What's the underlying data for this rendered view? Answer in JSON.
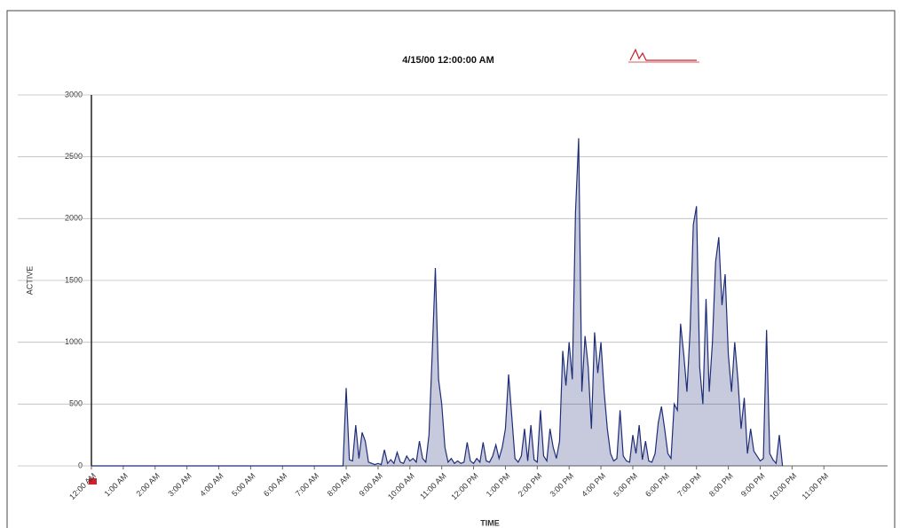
{
  "chart_data": {
    "type": "line",
    "title": "4/15/00 12:00:00 AM",
    "xlabel": "TIME",
    "ylabel": "ACTIVE",
    "color": "#1f2d78",
    "ylim": [
      0,
      3000
    ],
    "yticks": [
      0,
      500,
      1000,
      1500,
      2000,
      2500,
      3000
    ],
    "grid": true,
    "xlim": [
      0,
      25
    ],
    "xticks": [
      {
        "value": 0,
        "label": "12:00 AM"
      },
      {
        "value": 1,
        "label": "1:00 AM"
      },
      {
        "value": 2,
        "label": "2:00 AM"
      },
      {
        "value": 3,
        "label": "3:00 AM"
      },
      {
        "value": 4,
        "label": "4:00 AM"
      },
      {
        "value": 5,
        "label": "5:00 AM"
      },
      {
        "value": 6,
        "label": "6:00 AM"
      },
      {
        "value": 7,
        "label": "7:00 AM"
      },
      {
        "value": 8,
        "label": "8:00 AM"
      },
      {
        "value": 9,
        "label": "9:00 AM"
      },
      {
        "value": 10,
        "label": "10:00 AM"
      },
      {
        "value": 11,
        "label": "11:00 AM"
      },
      {
        "value": 12,
        "label": "12:00 PM"
      },
      {
        "value": 13,
        "label": "1:00 PM"
      },
      {
        "value": 14,
        "label": "2:00 PM"
      },
      {
        "value": 15,
        "label": "3:00 PM"
      },
      {
        "value": 16,
        "label": "4:00 PM"
      },
      {
        "value": 17,
        "label": "5:00 PM"
      },
      {
        "value": 18,
        "label": "6:00 PM"
      },
      {
        "value": 19,
        "label": "7:00 PM"
      },
      {
        "value": 20,
        "label": "8:00 PM"
      },
      {
        "value": 21,
        "label": "9:00 PM"
      },
      {
        "value": 22,
        "label": "10:00 PM"
      },
      {
        "value": 23,
        "label": "11:00 PM"
      }
    ],
    "x": [
      0,
      7.9,
      8.0,
      8.1,
      8.2,
      8.3,
      8.4,
      8.5,
      8.6,
      8.7,
      8.8,
      8.9,
      9.0,
      9.1,
      9.2,
      9.3,
      9.4,
      9.5,
      9.6,
      9.7,
      9.8,
      9.9,
      10.0,
      10.1,
      10.2,
      10.3,
      10.4,
      10.5,
      10.6,
      10.7,
      10.8,
      10.9,
      11.0,
      11.1,
      11.2,
      11.3,
      11.4,
      11.5,
      11.6,
      11.7,
      11.8,
      11.9,
      12.0,
      12.1,
      12.2,
      12.3,
      12.4,
      12.5,
      12.6,
      12.7,
      12.8,
      12.9,
      13.0,
      13.1,
      13.2,
      13.3,
      13.4,
      13.5,
      13.6,
      13.7,
      13.8,
      13.9,
      14.0,
      14.1,
      14.2,
      14.3,
      14.4,
      14.5,
      14.6,
      14.7,
      14.8,
      14.9,
      15.0,
      15.1,
      15.2,
      15.3,
      15.4,
      15.5,
      15.6,
      15.7,
      15.8,
      15.9,
      16.0,
      16.1,
      16.2,
      16.3,
      16.4,
      16.5,
      16.6,
      16.7,
      16.8,
      16.9,
      17.0,
      17.1,
      17.2,
      17.3,
      17.4,
      17.5,
      17.6,
      17.7,
      17.8,
      17.9,
      18.0,
      18.1,
      18.2,
      18.3,
      18.4,
      18.5,
      18.6,
      18.7,
      18.8,
      18.9,
      19.0,
      19.1,
      19.2,
      19.3,
      19.4,
      19.5,
      19.6,
      19.7,
      19.8,
      19.9,
      20.0,
      20.1,
      20.2,
      20.3,
      20.4,
      20.5,
      20.6,
      20.7,
      20.8,
      20.9,
      21.0,
      21.1,
      21.2,
      21.3,
      21.4,
      21.5,
      21.6,
      21.7
    ],
    "values": [
      0,
      0,
      630,
      50,
      40,
      330,
      60,
      270,
      200,
      30,
      20,
      10,
      20,
      10,
      130,
      20,
      50,
      20,
      110,
      30,
      20,
      80,
      40,
      60,
      30,
      200,
      60,
      30,
      250,
      900,
      1600,
      700,
      500,
      150,
      30,
      60,
      20,
      40,
      20,
      30,
      190,
      40,
      20,
      60,
      30,
      190,
      40,
      30,
      80,
      170,
      60,
      150,
      300,
      740,
      400,
      60,
      30,
      80,
      300,
      40,
      330,
      50,
      30,
      450,
      80,
      40,
      300,
      150,
      60,
      200,
      930,
      650,
      1000,
      700,
      2050,
      2650,
      600,
      1050,
      800,
      300,
      1080,
      750,
      1000,
      600,
      300,
      100,
      40,
      60,
      450,
      80,
      40,
      30,
      250,
      100,
      330,
      50,
      200,
      40,
      30,
      100,
      350,
      480,
      300,
      100,
      60,
      500,
      450,
      1150,
      900,
      600,
      1100,
      1950,
      2100,
      800,
      500,
      1350,
      600,
      1000,
      1650,
      1850,
      1300,
      1550,
      900,
      600,
      1000,
      700,
      300,
      550,
      100,
      300,
      120,
      80,
      40,
      60,
      1100,
      100,
      50,
      20,
      250,
      0
    ]
  }
}
